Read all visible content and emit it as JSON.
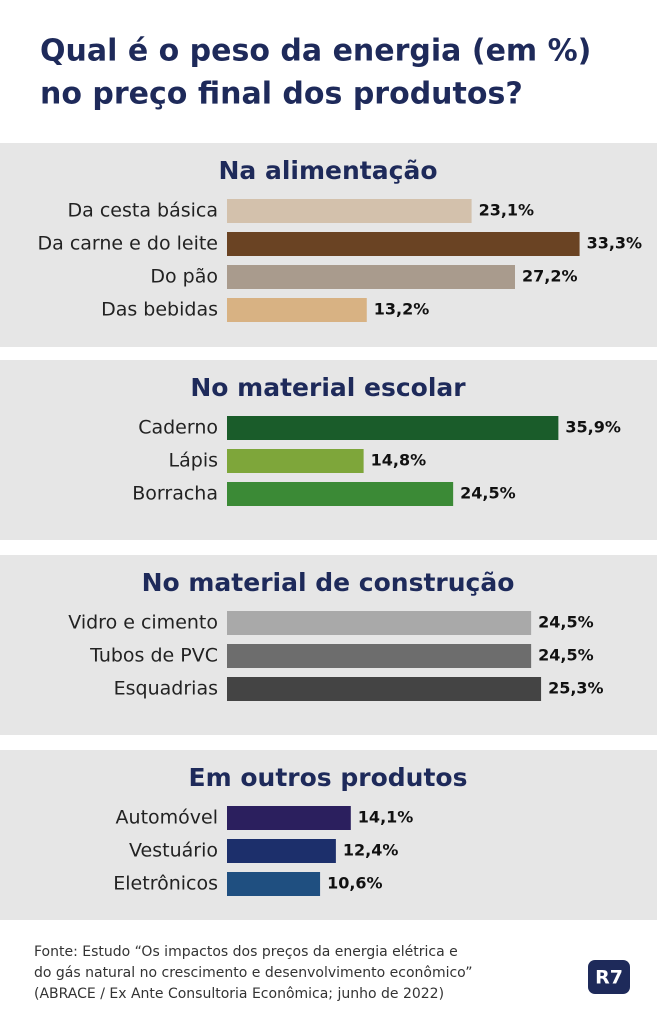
{
  "title": [
    "Qual é o peso da energia (em %)",
    "no preço final dos produtos?"
  ],
  "chart_data": [
    {
      "type": "bar",
      "orientation": "horizontal",
      "title": "Na alimentação",
      "categories": [
        "Da cesta básica",
        "Da carne e do leite",
        "Do pão",
        "Das bebidas"
      ],
      "values": [
        23.1,
        33.3,
        27.2,
        13.2
      ],
      "value_labels": [
        "23,1%",
        "33,3%",
        "27,2%",
        "13,2%"
      ],
      "colors": [
        "#d3c1ac",
        "#6a4323",
        "#a99b8d",
        "#d8b283"
      ],
      "xlim": [
        0,
        34
      ]
    },
    {
      "type": "bar",
      "orientation": "horizontal",
      "title": "No material escolar",
      "categories": [
        "Caderno",
        "Lápis",
        "Borracha"
      ],
      "values": [
        35.9,
        14.8,
        24.5
      ],
      "value_labels": [
        "35,9%",
        "14,8%",
        "24,5%"
      ],
      "colors": [
        "#1a5c2a",
        "#7ea63a",
        "#3b8a36"
      ],
      "xlim": [
        0,
        39
      ]
    },
    {
      "type": "bar",
      "orientation": "horizontal",
      "title": "No material de construção",
      "categories": [
        "Vidro e cimento",
        "Tubos de PVC",
        "Esquadrias"
      ],
      "values": [
        24.5,
        24.5,
        25.3
      ],
      "value_labels": [
        "24,5%",
        "24,5%",
        "25,3%"
      ],
      "colors": [
        "#a9a9a9",
        "#6d6d6d",
        "#444444"
      ],
      "xlim": [
        0,
        29
      ]
    },
    {
      "type": "bar",
      "orientation": "horizontal",
      "title": "Em outros produtos",
      "categories": [
        "Automóvel",
        "Vestuário",
        "Eletrônicos"
      ],
      "values": [
        14.1,
        12.4,
        10.6
      ],
      "value_labels": [
        "14,1%",
        "12,4%",
        "10,6%"
      ],
      "colors": [
        "#2b1f5e",
        "#1c2f6b",
        "#1f4f80"
      ],
      "xlim": [
        0,
        41
      ]
    }
  ],
  "source": [
    "Fonte: Estudo “Os impactos dos preços da energia elétrica e",
    "do gás natural no crescimento e desenvolvimento econômico”",
    "(ABRACE / Ex Ante Consultoria Econômica; junho de 2022)"
  ],
  "logo": "R7"
}
